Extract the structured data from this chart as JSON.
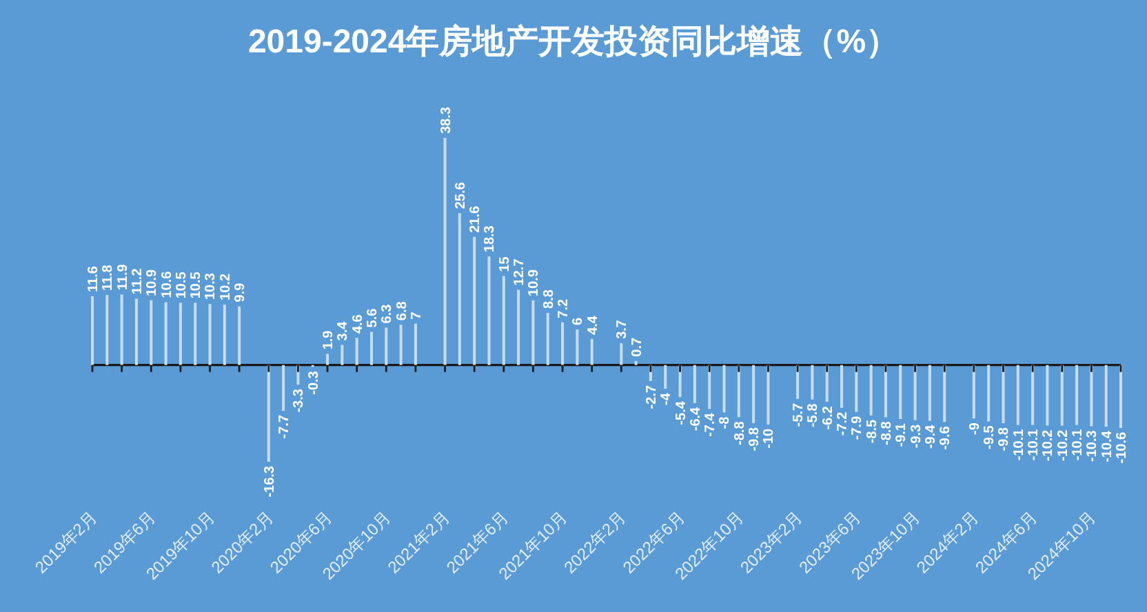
{
  "chart_data": {
    "type": "bar",
    "title": "2019-2024年房地产开发投资同比增速（%）",
    "categories": [
      "2019年2月",
      null,
      null,
      null,
      "2019年6月",
      null,
      null,
      null,
      "2019年10月",
      null,
      null,
      null,
      "2020年2月",
      null,
      null,
      null,
      "2020年6月",
      null,
      null,
      null,
      "2020年10月",
      null,
      null,
      null,
      "2021年2月",
      null,
      null,
      null,
      "2021年6月",
      null,
      null,
      null,
      "2021年10月",
      null,
      null,
      null,
      "2022年2月",
      null,
      null,
      null,
      "2022年6月",
      null,
      null,
      null,
      "2022年10月",
      null,
      null,
      null,
      "2023年2月",
      null,
      null,
      null,
      "2023年6月",
      null,
      null,
      null,
      "2023年10月",
      null,
      null,
      null,
      "2024年2月",
      null,
      null,
      null,
      "2024年6月",
      null,
      null,
      null,
      "2024年10月",
      null,
      null
    ],
    "values": [
      11.6,
      11.8,
      11.9,
      11.2,
      10.9,
      10.6,
      10.5,
      10.5,
      10.3,
      10.2,
      9.9,
      null,
      -16.3,
      -7.7,
      -3.3,
      -0.3,
      1.9,
      3.4,
      4.6,
      5.6,
      6.3,
      6.8,
      7.0,
      null,
      38.3,
      25.6,
      21.6,
      18.3,
      15.0,
      12.7,
      10.9,
      8.8,
      7.2,
      6.0,
      4.4,
      null,
      3.7,
      0.7,
      -2.7,
      -4.0,
      -5.4,
      -6.4,
      -7.4,
      -8.0,
      -8.8,
      -9.8,
      -10.0,
      null,
      -5.7,
      -5.8,
      -6.2,
      -7.2,
      -7.9,
      -8.5,
      -8.8,
      -9.1,
      -9.3,
      -9.4,
      -9.6,
      null,
      -9.0,
      -9.5,
      -9.8,
      -10.1,
      -10.1,
      -10.2,
      -10.2,
      -10.1,
      -10.3,
      -10.4,
      -10.6
    ],
    "color": "#c9dcf0",
    "data_labels": true
  }
}
